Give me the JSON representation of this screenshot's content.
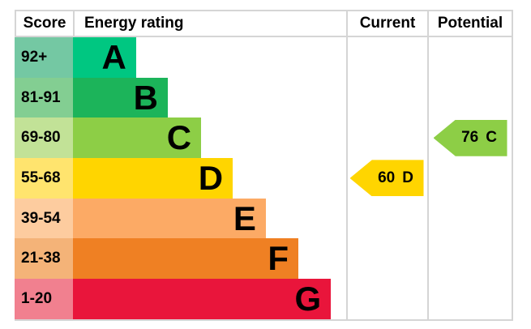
{
  "chart_data": {
    "type": "bar",
    "title": "",
    "headers": {
      "score": "Score",
      "rating": "Energy rating",
      "current": "Current",
      "potential": "Potential"
    },
    "bands": [
      {
        "grade": "A",
        "score_range": "92+",
        "color": "#00c781",
        "tint": "#74c8a3",
        "width_pct": 23.1
      },
      {
        "grade": "B",
        "score_range": "81-91",
        "color": "#1cb45a",
        "tint": "#83ce92",
        "width_pct": 34.7
      },
      {
        "grade": "C",
        "score_range": "69-80",
        "color": "#8dce46",
        "tint": "#c2e297",
        "width_pct": 46.9
      },
      {
        "grade": "D",
        "score_range": "55-68",
        "color": "#ffd500",
        "tint": "#ffe46e",
        "width_pct": 58.5
      },
      {
        "grade": "E",
        "score_range": "39-54",
        "color": "#fcaa65",
        "tint": "#fdcc9f",
        "width_pct": 70.6
      },
      {
        "grade": "F",
        "score_range": "21-38",
        "color": "#ef8023",
        "tint": "#f4b378",
        "width_pct": 82.5
      },
      {
        "grade": "G",
        "score_range": "1-20",
        "color": "#e9153b",
        "tint": "#f1808f",
        "width_pct": 94.4
      }
    ],
    "current": {
      "value": "60",
      "grade": "D",
      "band": "D",
      "color": "#ffd500"
    },
    "potential": {
      "value": "76",
      "grade": "C",
      "band": "C",
      "color": "#8dce46"
    }
  }
}
